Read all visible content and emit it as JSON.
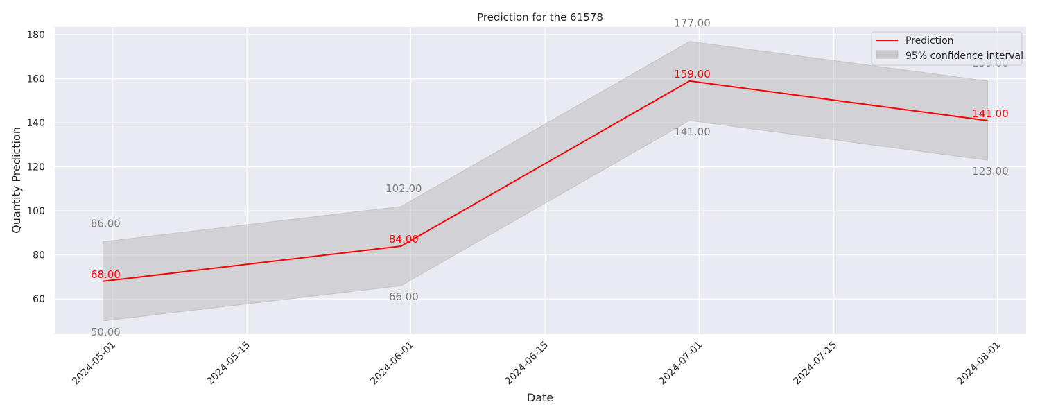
{
  "chart_data": {
    "type": "line",
    "title": "Prediction for the 61578",
    "xlabel": "Date",
    "ylabel": "Quantity Prediction",
    "x": [
      "2024-04-30",
      "2024-05-31",
      "2024-06-30",
      "2024-07-31"
    ],
    "series": [
      {
        "name": "Prediction",
        "values": [
          68,
          84,
          159,
          141
        ],
        "color": "#ff0000"
      }
    ],
    "confidence_interval": {
      "name": "95% confidence interval",
      "lower": [
        50,
        66,
        141,
        123
      ],
      "upper": [
        86,
        102,
        177,
        159
      ],
      "color": "#b0b0b0"
    },
    "value_labels": {
      "prediction": [
        "68.00",
        "84.00",
        "159.00",
        "141.00"
      ],
      "upper": [
        "86.00",
        "102.00",
        "177.00",
        "159.00"
      ],
      "lower": [
        "50.00",
        "66.00",
        "141.00",
        "123.00"
      ]
    },
    "x_ticks": [
      "2024-05-01",
      "2024-05-15",
      "2024-06-01",
      "2024-06-15",
      "2024-07-01",
      "2024-07-15",
      "2024-08-01"
    ],
    "y_ticks": [
      60,
      80,
      100,
      120,
      140,
      160,
      180
    ],
    "xlim": [
      "2024-04-25",
      "2024-08-04"
    ],
    "ylim": [
      44,
      183.5
    ],
    "grid": true,
    "background": "#eaeaf2",
    "legend_position": "top-right"
  }
}
